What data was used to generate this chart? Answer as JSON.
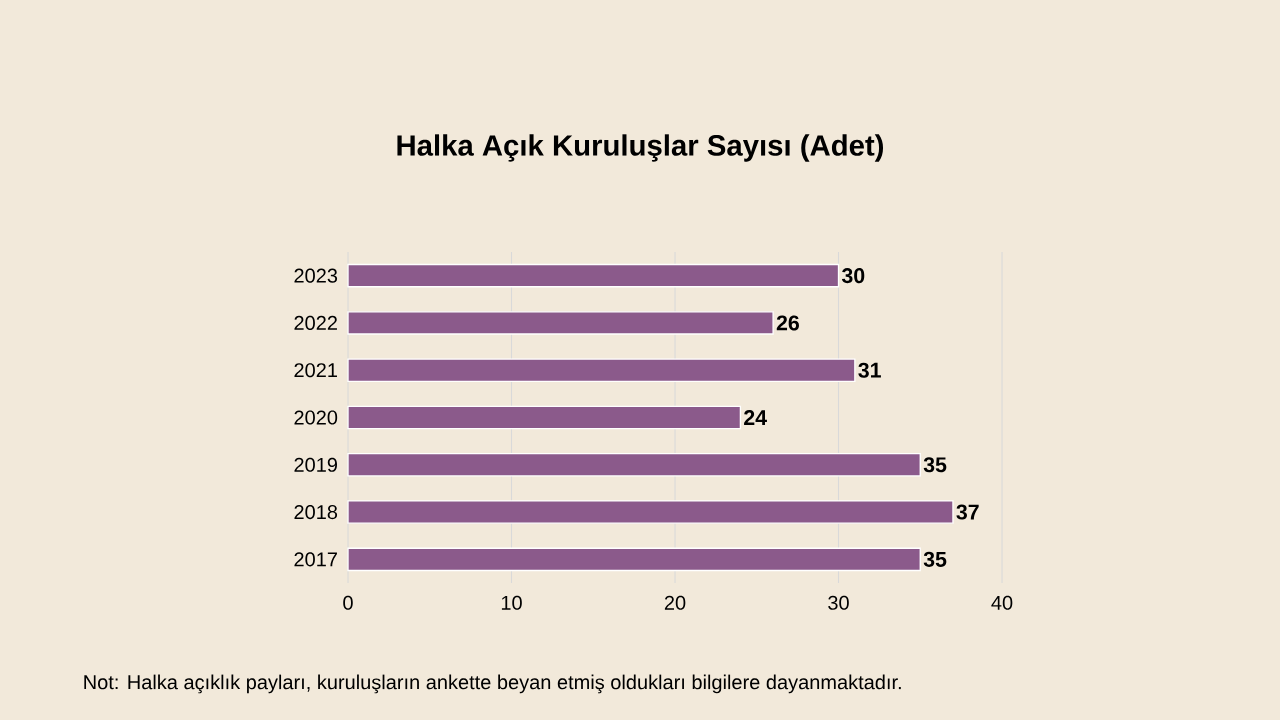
{
  "chart_data": {
    "type": "bar",
    "orientation": "horizontal",
    "title": "Halka Açık Kuruluşlar Sayısı (Adet)",
    "categories": [
      "2023",
      "2022",
      "2021",
      "2020",
      "2019",
      "2018",
      "2017"
    ],
    "values": [
      30,
      26,
      31,
      24,
      35,
      37,
      35
    ],
    "color": "#8b5a8b",
    "xlim": [
      0,
      40
    ],
    "xticks": [
      0,
      10,
      20,
      30,
      40
    ],
    "grid": "x",
    "data_labels": true,
    "annotations": [
      "Not: Halka açıklık payları, kuruluşların ankette beyan etmiş oldukları bilgilere dayanmaktadır."
    ]
  }
}
